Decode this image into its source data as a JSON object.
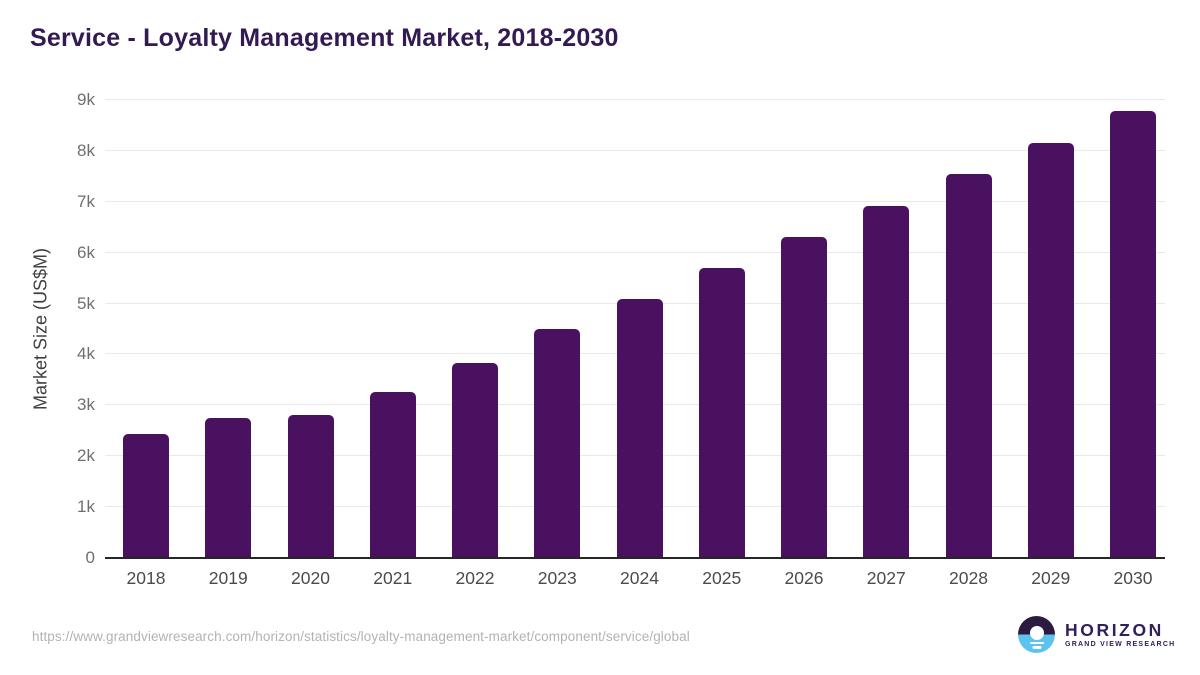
{
  "page": {
    "title": "Service - Loyalty Management Market, 2018-2030",
    "source_url": "https://www.grandviewresearch.com/horizon/statistics/loyalty-management-market/component/service/global"
  },
  "logo": {
    "name": "HORIZON",
    "subtitle": "GRAND VIEW RESEARCH",
    "icon": "sunset-over-water-icon",
    "colors": {
      "icon_top": "#2A1B41",
      "icon_bottom": "#5CC3EF",
      "text": "#33205A"
    }
  },
  "chart_data": {
    "type": "bar",
    "title": "Service - Loyalty Management Market, 2018-2030",
    "xlabel": "",
    "ylabel": "Market Size (US$M)",
    "categories": [
      "2018",
      "2019",
      "2020",
      "2021",
      "2022",
      "2023",
      "2024",
      "2025",
      "2026",
      "2027",
      "2028",
      "2029",
      "2030"
    ],
    "values": [
      2430,
      2750,
      2820,
      3270,
      3840,
      4500,
      5090,
      5690,
      6310,
      6920,
      7540,
      8160,
      8780
    ],
    "ylim": [
      0,
      9000
    ],
    "ytick_step": 1000,
    "ytick_labels": [
      "0",
      "1k",
      "2k",
      "3k",
      "4k",
      "5k",
      "6k",
      "7k",
      "8k",
      "9k"
    ],
    "grid": "horizontal",
    "legend": "none",
    "bar_color": "#4A1160"
  }
}
